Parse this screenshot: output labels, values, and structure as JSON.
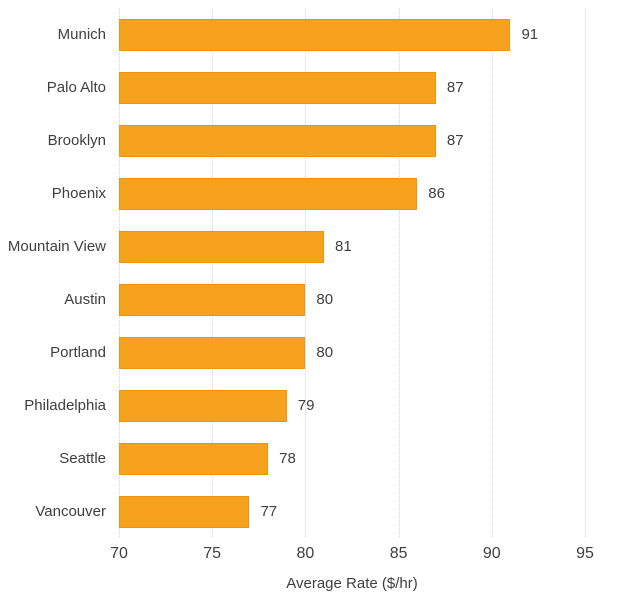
{
  "chart_data": {
    "type": "bar",
    "orientation": "horizontal",
    "title": "",
    "xlabel": "Average Rate ($/hr)",
    "ylabel": "",
    "categories": [
      "Munich",
      "Palo Alto",
      "Brooklyn",
      "Phoenix",
      "Mountain View",
      "Austin",
      "Portland",
      "Philadelphia",
      "Seattle",
      "Vancouver"
    ],
    "values": [
      91,
      87,
      87,
      86,
      81,
      80,
      80,
      79,
      78,
      77
    ],
    "xlim": [
      70,
      95
    ],
    "xticks": [
      70,
      75,
      80,
      85,
      90,
      95
    ],
    "grid": "vertical-dotted",
    "legend": "none",
    "colors": {
      "bar_fill": "#F6A21E",
      "bar_border": "#EE9312",
      "text": "#3F3F3F",
      "gridline": "#D4D4D4",
      "background": "#FFFFFF"
    }
  }
}
